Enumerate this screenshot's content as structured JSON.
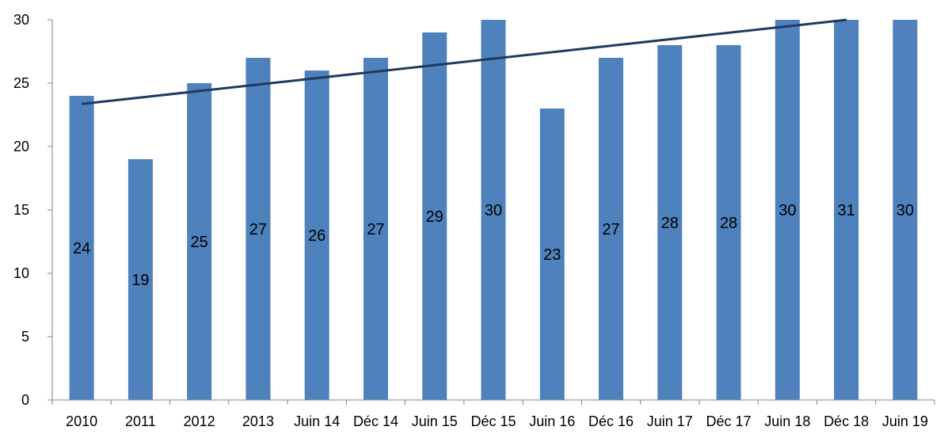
{
  "chart_data": {
    "type": "bar",
    "categories": [
      "2010",
      "2011",
      "2012",
      "2013",
      "Juin 14",
      "Déc 14",
      "Juin 15",
      "Déc 15",
      "Juin 16",
      "Déc 16",
      "Juin 17",
      "Déc 17",
      "Juin 18",
      "Déc 18",
      "Juin 19"
    ],
    "values": [
      24,
      19,
      25,
      27,
      26,
      27,
      29,
      30,
      23,
      27,
      28,
      28,
      30,
      31,
      30
    ],
    "ylim": [
      0,
      30
    ],
    "yticks": [
      0,
      5,
      10,
      15,
      20,
      25,
      30
    ],
    "trendline": "linear",
    "data_labels": true,
    "grid": false,
    "legend": "none",
    "colors": {
      "bar": "#4F81BD",
      "trend": "#1F3A5F",
      "axis": "#868686"
    }
  }
}
